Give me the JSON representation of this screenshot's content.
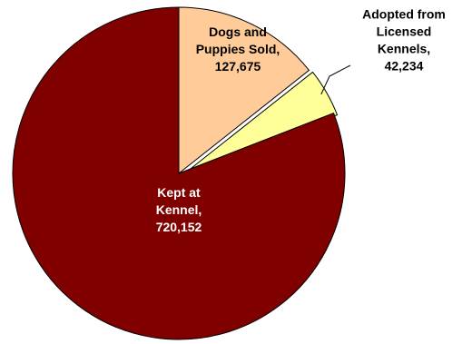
{
  "chart_data": {
    "type": "pie",
    "title": "",
    "slices": [
      {
        "name": "Dogs and Puppies Sold",
        "value": 127675,
        "color": "#FFCC99",
        "label_lines": [
          "Dogs and",
          "Puppies Sold,",
          "127,675"
        ],
        "label_color": "#000000"
      },
      {
        "name": "Adopted from Licensed Kennels",
        "value": 42234,
        "color": "#FFFF99",
        "label_lines": [
          "Adopted from",
          "Licensed",
          "Kennels,",
          "42,234"
        ],
        "label_color": "#000000"
      },
      {
        "name": "Kept at Kennel",
        "value": 720152,
        "color": "#800000",
        "label_lines": [
          "Kept at",
          "Kennel,",
          "720,152"
        ],
        "label_color": "#FFFFFF"
      }
    ]
  }
}
